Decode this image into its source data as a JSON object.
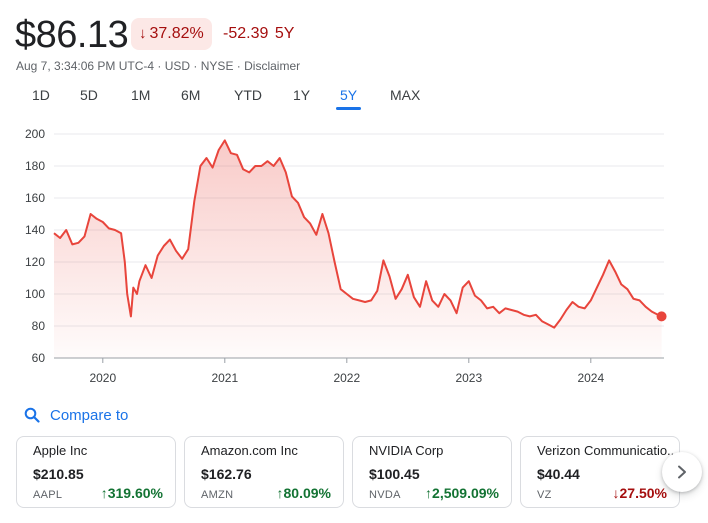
{
  "quote": {
    "price": "$86.13",
    "change_arrow": "↓",
    "change_percent": "37.82%",
    "change_value": "-52.39",
    "period": "5Y",
    "status_color": "#a50e0e"
  },
  "meta": [
    "Aug 7, 3:34:06 PM UTC-4",
    "USD",
    "NYSE",
    "Disclaimer"
  ],
  "ranges": [
    "1D",
    "5D",
    "1M",
    "6M",
    "YTD",
    "1Y",
    "5Y",
    "MAX"
  ],
  "active_range": "5Y",
  "compare": {
    "label": "Compare to",
    "icon": "search-icon"
  },
  "cards": [
    {
      "name": "Apple Inc",
      "price": "$210.85",
      "ticker": "AAPL",
      "direction": "up",
      "change": "319.60%"
    },
    {
      "name": "Amazon.com Inc",
      "price": "$162.76",
      "ticker": "AMZN",
      "direction": "up",
      "change": "80.09%"
    },
    {
      "name": "NVIDIA Corp",
      "price": "$100.45",
      "ticker": "NVDA",
      "direction": "up",
      "change": "2,509.09%"
    },
    {
      "name": "Verizon Communicatio...",
      "price": "$40.44",
      "ticker": "VZ",
      "direction": "down",
      "change": "27.50%"
    }
  ],
  "chart_data": {
    "type": "line",
    "line_color": "#e8453c",
    "y_ticks": [
      200,
      180,
      160,
      140,
      120,
      100,
      80,
      60
    ],
    "ylim": [
      60,
      200
    ],
    "x_ticks": [
      "2020",
      "2021",
      "2022",
      "2023",
      "2024"
    ],
    "xlim": [
      2019.6,
      2024.6
    ],
    "x_tick_values": [
      2020.0,
      2021.0,
      2022.0,
      2023.0,
      2024.0
    ],
    "grid": true,
    "series": [
      {
        "x": [
          2019.6,
          2019.65,
          2019.7,
          2019.75,
          2019.8,
          2019.85,
          2019.9,
          2019.95,
          2020.0,
          2020.05,
          2020.1,
          2020.15,
          2020.18,
          2020.2,
          2020.23,
          2020.25,
          2020.28,
          2020.3,
          2020.35,
          2020.4,
          2020.45,
          2020.5,
          2020.55,
          2020.6,
          2020.65,
          2020.7,
          2020.75,
          2020.8,
          2020.85,
          2020.9,
          2020.95,
          2021.0,
          2021.05,
          2021.1,
          2021.15,
          2021.2,
          2021.25,
          2021.3,
          2021.35,
          2021.4,
          2021.45,
          2021.5,
          2021.55,
          2021.6,
          2021.65,
          2021.7,
          2021.75,
          2021.8,
          2021.85,
          2021.9,
          2021.95,
          2022.0,
          2022.05,
          2022.1,
          2022.15,
          2022.2,
          2022.25,
          2022.3,
          2022.35,
          2022.4,
          2022.45,
          2022.5,
          2022.55,
          2022.6,
          2022.65,
          2022.7,
          2022.75,
          2022.8,
          2022.85,
          2022.9,
          2022.95,
          2023.0,
          2023.05,
          2023.1,
          2023.15,
          2023.2,
          2023.25,
          2023.3,
          2023.35,
          2023.4,
          2023.45,
          2023.5,
          2023.55,
          2023.6,
          2023.65,
          2023.7,
          2023.75,
          2023.8,
          2023.85,
          2023.9,
          2023.95,
          2024.0,
          2024.05,
          2024.1,
          2024.15,
          2024.2,
          2024.25,
          2024.3,
          2024.35,
          2024.4,
          2024.45,
          2024.5,
          2024.55,
          2024.58
        ],
        "y": [
          138,
          135,
          140,
          131,
          132,
          136,
          150,
          147,
          145,
          141,
          140,
          138,
          120,
          100,
          86,
          104,
          100,
          108,
          118,
          110,
          124,
          130,
          134,
          127,
          122,
          128,
          158,
          180,
          185,
          179,
          190,
          196,
          188,
          187,
          178,
          176,
          180,
          180,
          183,
          180,
          185,
          176,
          161,
          157,
          148,
          144,
          137,
          150,
          138,
          120,
          103,
          100,
          97,
          96,
          95,
          96,
          102,
          121,
          111,
          97,
          103,
          112,
          98,
          92,
          108,
          96,
          92,
          100,
          96,
          88,
          104,
          108,
          99,
          96,
          91,
          92,
          88,
          91,
          90,
          89,
          87,
          86,
          87,
          83,
          81,
          79,
          84,
          90,
          95,
          92,
          91,
          96,
          104,
          112,
          121,
          114,
          106,
          103,
          97,
          96,
          92,
          89,
          87,
          86
        ]
      }
    ]
  }
}
